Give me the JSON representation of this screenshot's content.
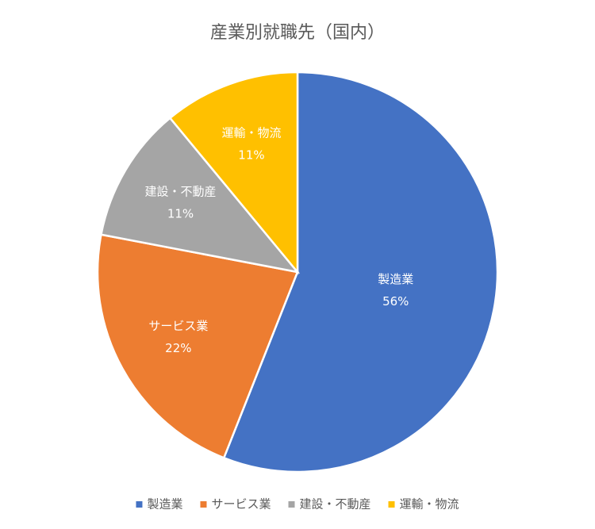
{
  "chart_data": {
    "type": "pie",
    "title": "産業別就職先（国内）",
    "categories": [
      "製造業",
      "サービス業",
      "建設・不動産",
      "運輸・物流"
    ],
    "values": [
      56,
      22,
      11,
      11
    ],
    "value_labels": [
      "56%",
      "22%",
      "11%",
      "11%"
    ],
    "colors": [
      "#4472c4",
      "#ed7d31",
      "#a5a5a5",
      "#ffc000"
    ],
    "legend": "bottom"
  }
}
